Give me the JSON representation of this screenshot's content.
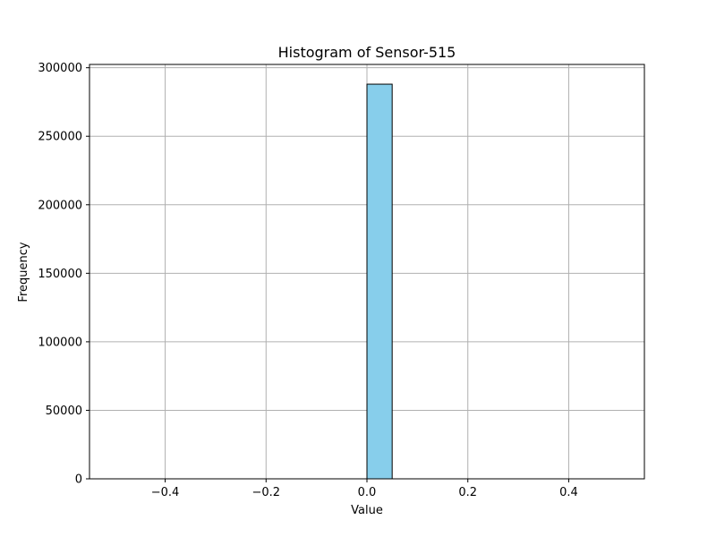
{
  "chart_data": {
    "type": "bar",
    "title": "Histogram of Sensor-515",
    "xlabel": "Value",
    "ylabel": "Frequency",
    "xlim": [
      -0.55,
      0.55
    ],
    "ylim": [
      0,
      302400
    ],
    "xticks": [
      -0.4,
      -0.2,
      0.0,
      0.2,
      0.4
    ],
    "xtick_labels": [
      "−0.4",
      "−0.2",
      "0.0",
      "0.2",
      "0.4"
    ],
    "yticks": [
      0,
      50000,
      100000,
      150000,
      200000,
      250000,
      300000
    ],
    "ytick_labels": [
      "0",
      "50000",
      "100000",
      "150000",
      "200000",
      "250000",
      "300000"
    ],
    "grid": true,
    "bar_color": "#87ceeb",
    "edge_color": "#000000",
    "bins": [
      {
        "x0": -0.5,
        "x1": -0.45,
        "count": 0
      },
      {
        "x0": -0.45,
        "x1": -0.4,
        "count": 0
      },
      {
        "x0": -0.4,
        "x1": -0.35,
        "count": 0
      },
      {
        "x0": -0.35,
        "x1": -0.3,
        "count": 0
      },
      {
        "x0": -0.3,
        "x1": -0.25,
        "count": 0
      },
      {
        "x0": -0.25,
        "x1": -0.2,
        "count": 0
      },
      {
        "x0": -0.2,
        "x1": -0.15,
        "count": 0
      },
      {
        "x0": -0.15,
        "x1": -0.1,
        "count": 0
      },
      {
        "x0": -0.1,
        "x1": -0.05,
        "count": 0
      },
      {
        "x0": -0.05,
        "x1": 0.0,
        "count": 0
      },
      {
        "x0": 0.0,
        "x1": 0.05,
        "count": 288000
      },
      {
        "x0": 0.05,
        "x1": 0.1,
        "count": 0
      },
      {
        "x0": 0.1,
        "x1": 0.15,
        "count": 0
      },
      {
        "x0": 0.15,
        "x1": 0.2,
        "count": 0
      },
      {
        "x0": 0.2,
        "x1": 0.25,
        "count": 0
      },
      {
        "x0": 0.25,
        "x1": 0.3,
        "count": 0
      },
      {
        "x0": 0.3,
        "x1": 0.35,
        "count": 0
      },
      {
        "x0": 0.35,
        "x1": 0.4,
        "count": 0
      },
      {
        "x0": 0.4,
        "x1": 0.45,
        "count": 0
      },
      {
        "x0": 0.45,
        "x1": 0.5,
        "count": 0
      }
    ]
  }
}
